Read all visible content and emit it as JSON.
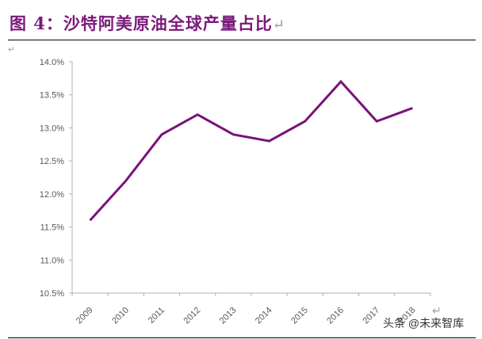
{
  "figure": {
    "title": "图 4：沙特阿美原油全球产量占比",
    "return_mark": "↵",
    "watermark": "头条 @未来智库"
  },
  "colors": {
    "line": "#78127a",
    "title": "#7a1a7a",
    "axis": "#b0b0b0",
    "tick_label": "#595959"
  },
  "chart_data": {
    "type": "line",
    "title": "沙特阿美原油全球产量占比",
    "xlabel": "",
    "ylabel": "",
    "categories": [
      "2009",
      "2010",
      "2011",
      "2012",
      "2013",
      "2014",
      "2015",
      "2016",
      "2017",
      "2018"
    ],
    "series": [
      {
        "name": "沙特阿美原油全球产量占比",
        "values": [
          11.6,
          12.2,
          12.9,
          13.2,
          12.9,
          12.8,
          13.1,
          13.7,
          13.1,
          13.3
        ]
      }
    ],
    "ylim": [
      10.5,
      14.0
    ],
    "yticks": [
      "10.5%",
      "11.0%",
      "11.5%",
      "12.0%",
      "12.5%",
      "13.0%",
      "13.5%",
      "14.0%"
    ],
    "ytick_values": [
      10.5,
      11.0,
      11.5,
      12.0,
      12.5,
      13.0,
      13.5,
      14.0
    ],
    "grid": false,
    "legend": "none"
  }
}
